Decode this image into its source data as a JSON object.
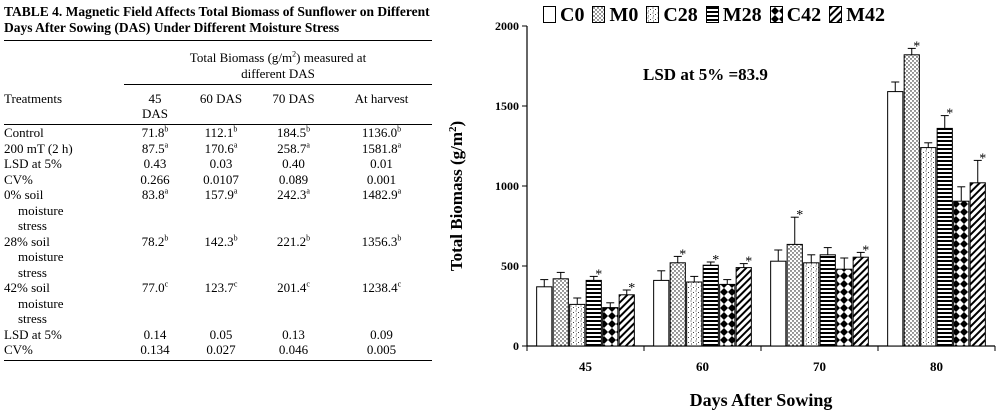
{
  "table": {
    "caption": "TABLE 4.  Magnetic Field Affects Total Biomass of Sunflower on Different Days After Sowing (DAS) Under Different Moisture Stress",
    "group_header": {
      "line1_prefix": "Total Biomass (g/m",
      "line1_sup": "2",
      "line1_suffix": ") measured at",
      "line2": "different DAS"
    },
    "columns": [
      "Treatments",
      "45 DAS",
      "60 DAS",
      "70 DAS",
      "At harvest"
    ],
    "rows": [
      {
        "label": "Control",
        "cells": [
          {
            "v": "71.8",
            "s": "b"
          },
          {
            "v": "112.1",
            "s": "b"
          },
          {
            "v": "184.5",
            "s": "b"
          },
          {
            "v": "1136.0",
            "s": "b"
          }
        ]
      },
      {
        "label": "200 mT (2 h)",
        "cells": [
          {
            "v": "87.5",
            "s": "a"
          },
          {
            "v": "170.6",
            "s": "a"
          },
          {
            "v": "258.7",
            "s": "a"
          },
          {
            "v": "1581.8",
            "s": "a"
          }
        ]
      },
      {
        "label": "LSD at 5%",
        "cells": [
          {
            "v": "0.43",
            "s": ""
          },
          {
            "v": "0.03",
            "s": ""
          },
          {
            "v": "0.40",
            "s": ""
          },
          {
            "v": "0.01",
            "s": ""
          }
        ]
      },
      {
        "label": "CV%",
        "cells": [
          {
            "v": "0.266",
            "s": ""
          },
          {
            "v": "0.0107",
            "s": ""
          },
          {
            "v": "0.089",
            "s": ""
          },
          {
            "v": "0.001",
            "s": ""
          }
        ]
      },
      {
        "label": "0% soil",
        "label2": "moisture",
        "label3": "stress",
        "cells": [
          {
            "v": "83.8",
            "s": "a"
          },
          {
            "v": "157.9",
            "s": "a"
          },
          {
            "v": "242.3",
            "s": "a"
          },
          {
            "v": "1482.9",
            "s": "a"
          }
        ]
      },
      {
        "label": "28% soil",
        "label2": "moisture",
        "label3": "stress",
        "cells": [
          {
            "v": "78.2",
            "s": "b"
          },
          {
            "v": "142.3",
            "s": "b"
          },
          {
            "v": "221.2",
            "s": "b"
          },
          {
            "v": "1356.3",
            "s": "b"
          }
        ]
      },
      {
        "label": "42% soil",
        "label2": "moisture",
        "label3": "stress",
        "cells": [
          {
            "v": "77.0",
            "s": "c"
          },
          {
            "v": "123.7",
            "s": "c"
          },
          {
            "v": "201.4",
            "s": "c"
          },
          {
            "v": "1238.4",
            "s": "c"
          }
        ]
      },
      {
        "label": "LSD at 5%",
        "cells": [
          {
            "v": "0.14",
            "s": ""
          },
          {
            "v": "0.05",
            "s": ""
          },
          {
            "v": "0.13",
            "s": ""
          },
          {
            "v": "0.09",
            "s": ""
          }
        ]
      },
      {
        "label": "CV%",
        "cells": [
          {
            "v": "0.134",
            "s": ""
          },
          {
            "v": "0.027",
            "s": ""
          },
          {
            "v": "0.046",
            "s": ""
          },
          {
            "v": "0.005",
            "s": ""
          }
        ]
      }
    ]
  },
  "chart_data": {
    "type": "bar",
    "title": "",
    "annotation": "LSD at 5% =83.9",
    "xlabel": "Days After Sowing",
    "ylabel_prefix": "Total Biomass (g/m",
    "ylabel_sup": "2",
    "ylabel_suffix": ")",
    "ylim": [
      0,
      2000
    ],
    "yticks": [
      0,
      500,
      1000,
      1500,
      2000
    ],
    "categories": [
      "45",
      "60",
      "70",
      "80"
    ],
    "significance_marker": "*",
    "series": [
      {
        "name": "C0",
        "pattern": "white",
        "values": [
          370,
          410,
          530,
          1590
        ],
        "errors": [
          45,
          60,
          70,
          60
        ],
        "star": [
          false,
          false,
          false,
          false
        ]
      },
      {
        "name": "M0",
        "pattern": "dots",
        "values": [
          420,
          520,
          635,
          1820
        ],
        "errors": [
          40,
          40,
          170,
          40
        ],
        "star": [
          false,
          true,
          true,
          true
        ]
      },
      {
        "name": "C28",
        "pattern": "stipple",
        "values": [
          260,
          400,
          520,
          1240
        ],
        "errors": [
          40,
          35,
          50,
          30
        ],
        "star": [
          false,
          false,
          false,
          false
        ]
      },
      {
        "name": "M28",
        "pattern": "hlines",
        "values": [
          410,
          505,
          570,
          1360
        ],
        "errors": [
          25,
          20,
          45,
          80
        ],
        "star": [
          true,
          true,
          false,
          true
        ]
      },
      {
        "name": "C42",
        "pattern": "diamond",
        "values": [
          240,
          385,
          480,
          905
        ],
        "errors": [
          30,
          30,
          70,
          90
        ],
        "star": [
          false,
          false,
          false,
          false
        ]
      },
      {
        "name": "M42",
        "pattern": "diag",
        "values": [
          320,
          490,
          555,
          1020
        ],
        "errors": [
          30,
          25,
          30,
          140
        ],
        "star": [
          true,
          true,
          true,
          true
        ]
      }
    ]
  }
}
